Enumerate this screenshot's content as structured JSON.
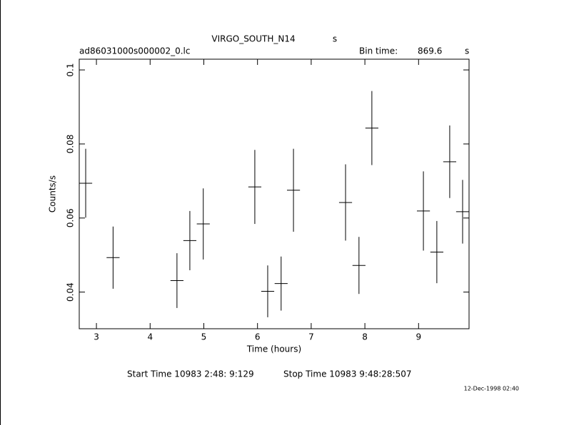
{
  "chart_data": {
    "type": "errorbar",
    "title": "VIRGO_SOUTH_N14",
    "title_unit": "s",
    "filename": "ad86031000s000002_0.lc",
    "bin_time_label": "Bin time:",
    "bin_time": 869.6,
    "bin_time_unit": "s",
    "xlabel": "Time (hours)",
    "ylabel": "Counts/s",
    "x": [
      2.8,
      3.31,
      4.5,
      4.74,
      4.99,
      5.95,
      6.19,
      6.44,
      6.67,
      7.64,
      7.89,
      8.13,
      9.09,
      9.34,
      9.58,
      9.82
    ],
    "values": [
      0.0694,
      0.0493,
      0.0431,
      0.0539,
      0.0584,
      0.0684,
      0.0402,
      0.0423,
      0.0675,
      0.0642,
      0.0472,
      0.0843,
      0.0619,
      0.0508,
      0.0752,
      0.0617
    ],
    "errors": [
      0.0093,
      0.0084,
      0.0074,
      0.008,
      0.0096,
      0.01,
      0.007,
      0.0073,
      0.0112,
      0.0103,
      0.0077,
      0.01,
      0.0107,
      0.0084,
      0.0098,
      0.0086
    ],
    "xerr": 0.121,
    "color": "#000000",
    "xlim": [
      2.68,
      9.94
    ],
    "xticks": [
      3,
      4,
      5,
      6,
      7,
      8,
      9
    ],
    "ylim": [
      0.0301,
      0.1029
    ],
    "yticks": [
      0.04,
      0.06,
      0.08,
      0.1
    ],
    "start_time": "Start Time 10983  2:48: 9:129",
    "stop_time": "Stop Time 10983  9:48:28:507",
    "date": "12-Dec-1998 02:40"
  }
}
